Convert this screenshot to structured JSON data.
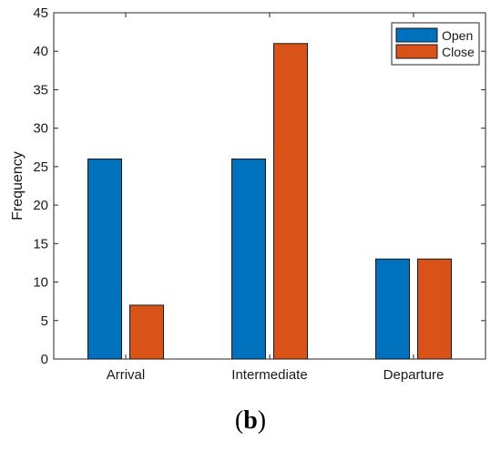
{
  "chart_data": {
    "type": "bar",
    "categories": [
      "Arrival",
      "Intermediate",
      "Departure"
    ],
    "series": [
      {
        "name": "Open",
        "values": [
          26,
          26,
          13
        ],
        "color": "#0072BD"
      },
      {
        "name": "Close",
        "values": [
          7,
          41,
          13
        ],
        "color": "#D95319"
      }
    ],
    "ylabel": "Frequency",
    "xlabel": "",
    "ylim": [
      0,
      45
    ],
    "yticks": [
      0,
      5,
      10,
      15,
      20,
      25,
      30,
      35,
      40,
      45
    ],
    "grid": false,
    "legend_position": "top-right"
  },
  "caption": {
    "open_paren": "(",
    "letter": "b",
    "close_paren": ")"
  }
}
